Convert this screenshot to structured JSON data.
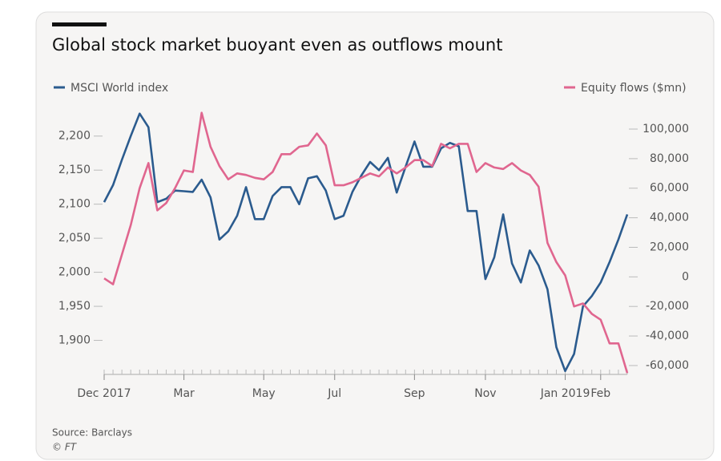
{
  "chart_data": {
    "type": "line",
    "title": "Global stock market buoyant even as outflows mount",
    "source": "Source: Barclays",
    "credit": "© FT",
    "categories": [
      "Dec 2017",
      null,
      null,
      null,
      null,
      null,
      null,
      null,
      null,
      "Mar",
      null,
      null,
      null,
      null,
      null,
      null,
      null,
      null,
      "May",
      null,
      null,
      null,
      null,
      null,
      null,
      null,
      "Jul",
      null,
      null,
      null,
      null,
      null,
      null,
      null,
      null,
      "Sep",
      null,
      null,
      null,
      null,
      null,
      null,
      null,
      "Nov",
      null,
      null,
      null,
      null,
      null,
      null,
      null,
      null,
      "Jan 2019",
      null,
      null,
      null,
      "Feb",
      null,
      null,
      null
    ],
    "series": [
      {
        "name": "MSCI World index",
        "color": "#2b5b8e",
        "axis": "y",
        "values": [
          2103,
          2128,
          2165,
          2200,
          2233,
          2213,
          2103,
          2108,
          2120,
          2119,
          2118,
          2136,
          2110,
          2048,
          2060,
          2083,
          2125,
          2078,
          2078,
          2112,
          2125,
          2125,
          2100,
          2138,
          2141,
          2120,
          2078,
          2083,
          2118,
          2142,
          2162,
          2150,
          2168,
          2117,
          2155,
          2192,
          2155,
          2155,
          2182,
          2190,
          2185,
          2090,
          2090,
          1990,
          2022,
          2085,
          2013,
          1985,
          2032,
          2010,
          1975,
          1890,
          1855,
          1880,
          1950,
          1965,
          1985,
          2015,
          2048,
          2085
        ]
      },
      {
        "name": "Equity flows ($mn)",
        "color": "#e0668f",
        "axis": "y2",
        "values": [
          -1000,
          -5000,
          15000,
          35000,
          60000,
          77000,
          45000,
          50000,
          60000,
          72000,
          71000,
          111000,
          88000,
          75000,
          66000,
          70000,
          69000,
          67000,
          66000,
          71000,
          83000,
          83000,
          88000,
          89000,
          97000,
          89000,
          62000,
          62000,
          64000,
          67000,
          70000,
          68000,
          74000,
          70000,
          74000,
          79000,
          79000,
          75000,
          90000,
          87000,
          90000,
          90000,
          71000,
          77000,
          74000,
          73000,
          77000,
          72000,
          69000,
          61000,
          23000,
          10000,
          1000,
          -20000,
          -18000,
          -25000,
          -29000,
          -45000,
          -45000,
          -65000
        ]
      }
    ],
    "ylim": [
      1850,
      2235
    ],
    "yticks": [
      {
        "value": 1900,
        "label": "1,900"
      },
      {
        "value": 1950,
        "label": "1,950"
      },
      {
        "value": 2000,
        "label": "2,000"
      },
      {
        "value": 2050,
        "label": "2,050"
      },
      {
        "value": 2100,
        "label": "2,100"
      },
      {
        "value": 2150,
        "label": "2,150"
      },
      {
        "value": 2200,
        "label": "2,200"
      }
    ],
    "y2lim": [
      -66000,
      111400
    ],
    "y2ticks": [
      {
        "value": -60000,
        "label": "-60,000"
      },
      {
        "value": -40000,
        "label": "-40,000"
      },
      {
        "value": -20000,
        "label": "-20,000"
      },
      0,
      {
        "value": 20000,
        "label": "20,000"
      },
      {
        "value": 40000,
        "label": "40,000"
      },
      {
        "value": 60000,
        "label": "60,000"
      },
      {
        "value": 80000,
        "label": "80,000"
      },
      {
        "value": 100000,
        "label": "100,000"
      }
    ],
    "grid": false
  }
}
